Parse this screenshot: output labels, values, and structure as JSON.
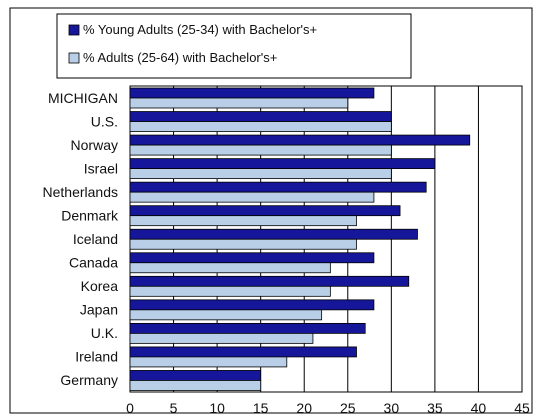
{
  "chart_data": {
    "type": "bar",
    "orientation": "horizontal",
    "title": "",
    "xlabel": "",
    "ylabel": "",
    "xlim": [
      0,
      45
    ],
    "x_ticks": [
      0,
      5,
      10,
      15,
      20,
      25,
      30,
      35,
      40,
      45
    ],
    "grid": "vertical",
    "legend_position": "top",
    "categories": [
      "MICHIGAN",
      "U.S.",
      "Norway",
      "Israel",
      "Netherlands",
      "Denmark",
      "Iceland",
      "Canada",
      "Korea",
      "Japan",
      "U.K.",
      "Ireland",
      "Germany"
    ],
    "series": [
      {
        "name": "% Young Adults (25-34) with Bachelor's+",
        "color": "#16169a",
        "values": [
          28,
          30,
          39,
          35,
          34,
          31,
          33,
          28,
          32,
          28,
          27,
          26,
          15
        ]
      },
      {
        "name": "% Adults (25-64) with Bachelor's+",
        "color": "#b9cfe8",
        "values": [
          25,
          30,
          30,
          30,
          28,
          26,
          26,
          23,
          23,
          22,
          21,
          18,
          15
        ]
      }
    ]
  }
}
